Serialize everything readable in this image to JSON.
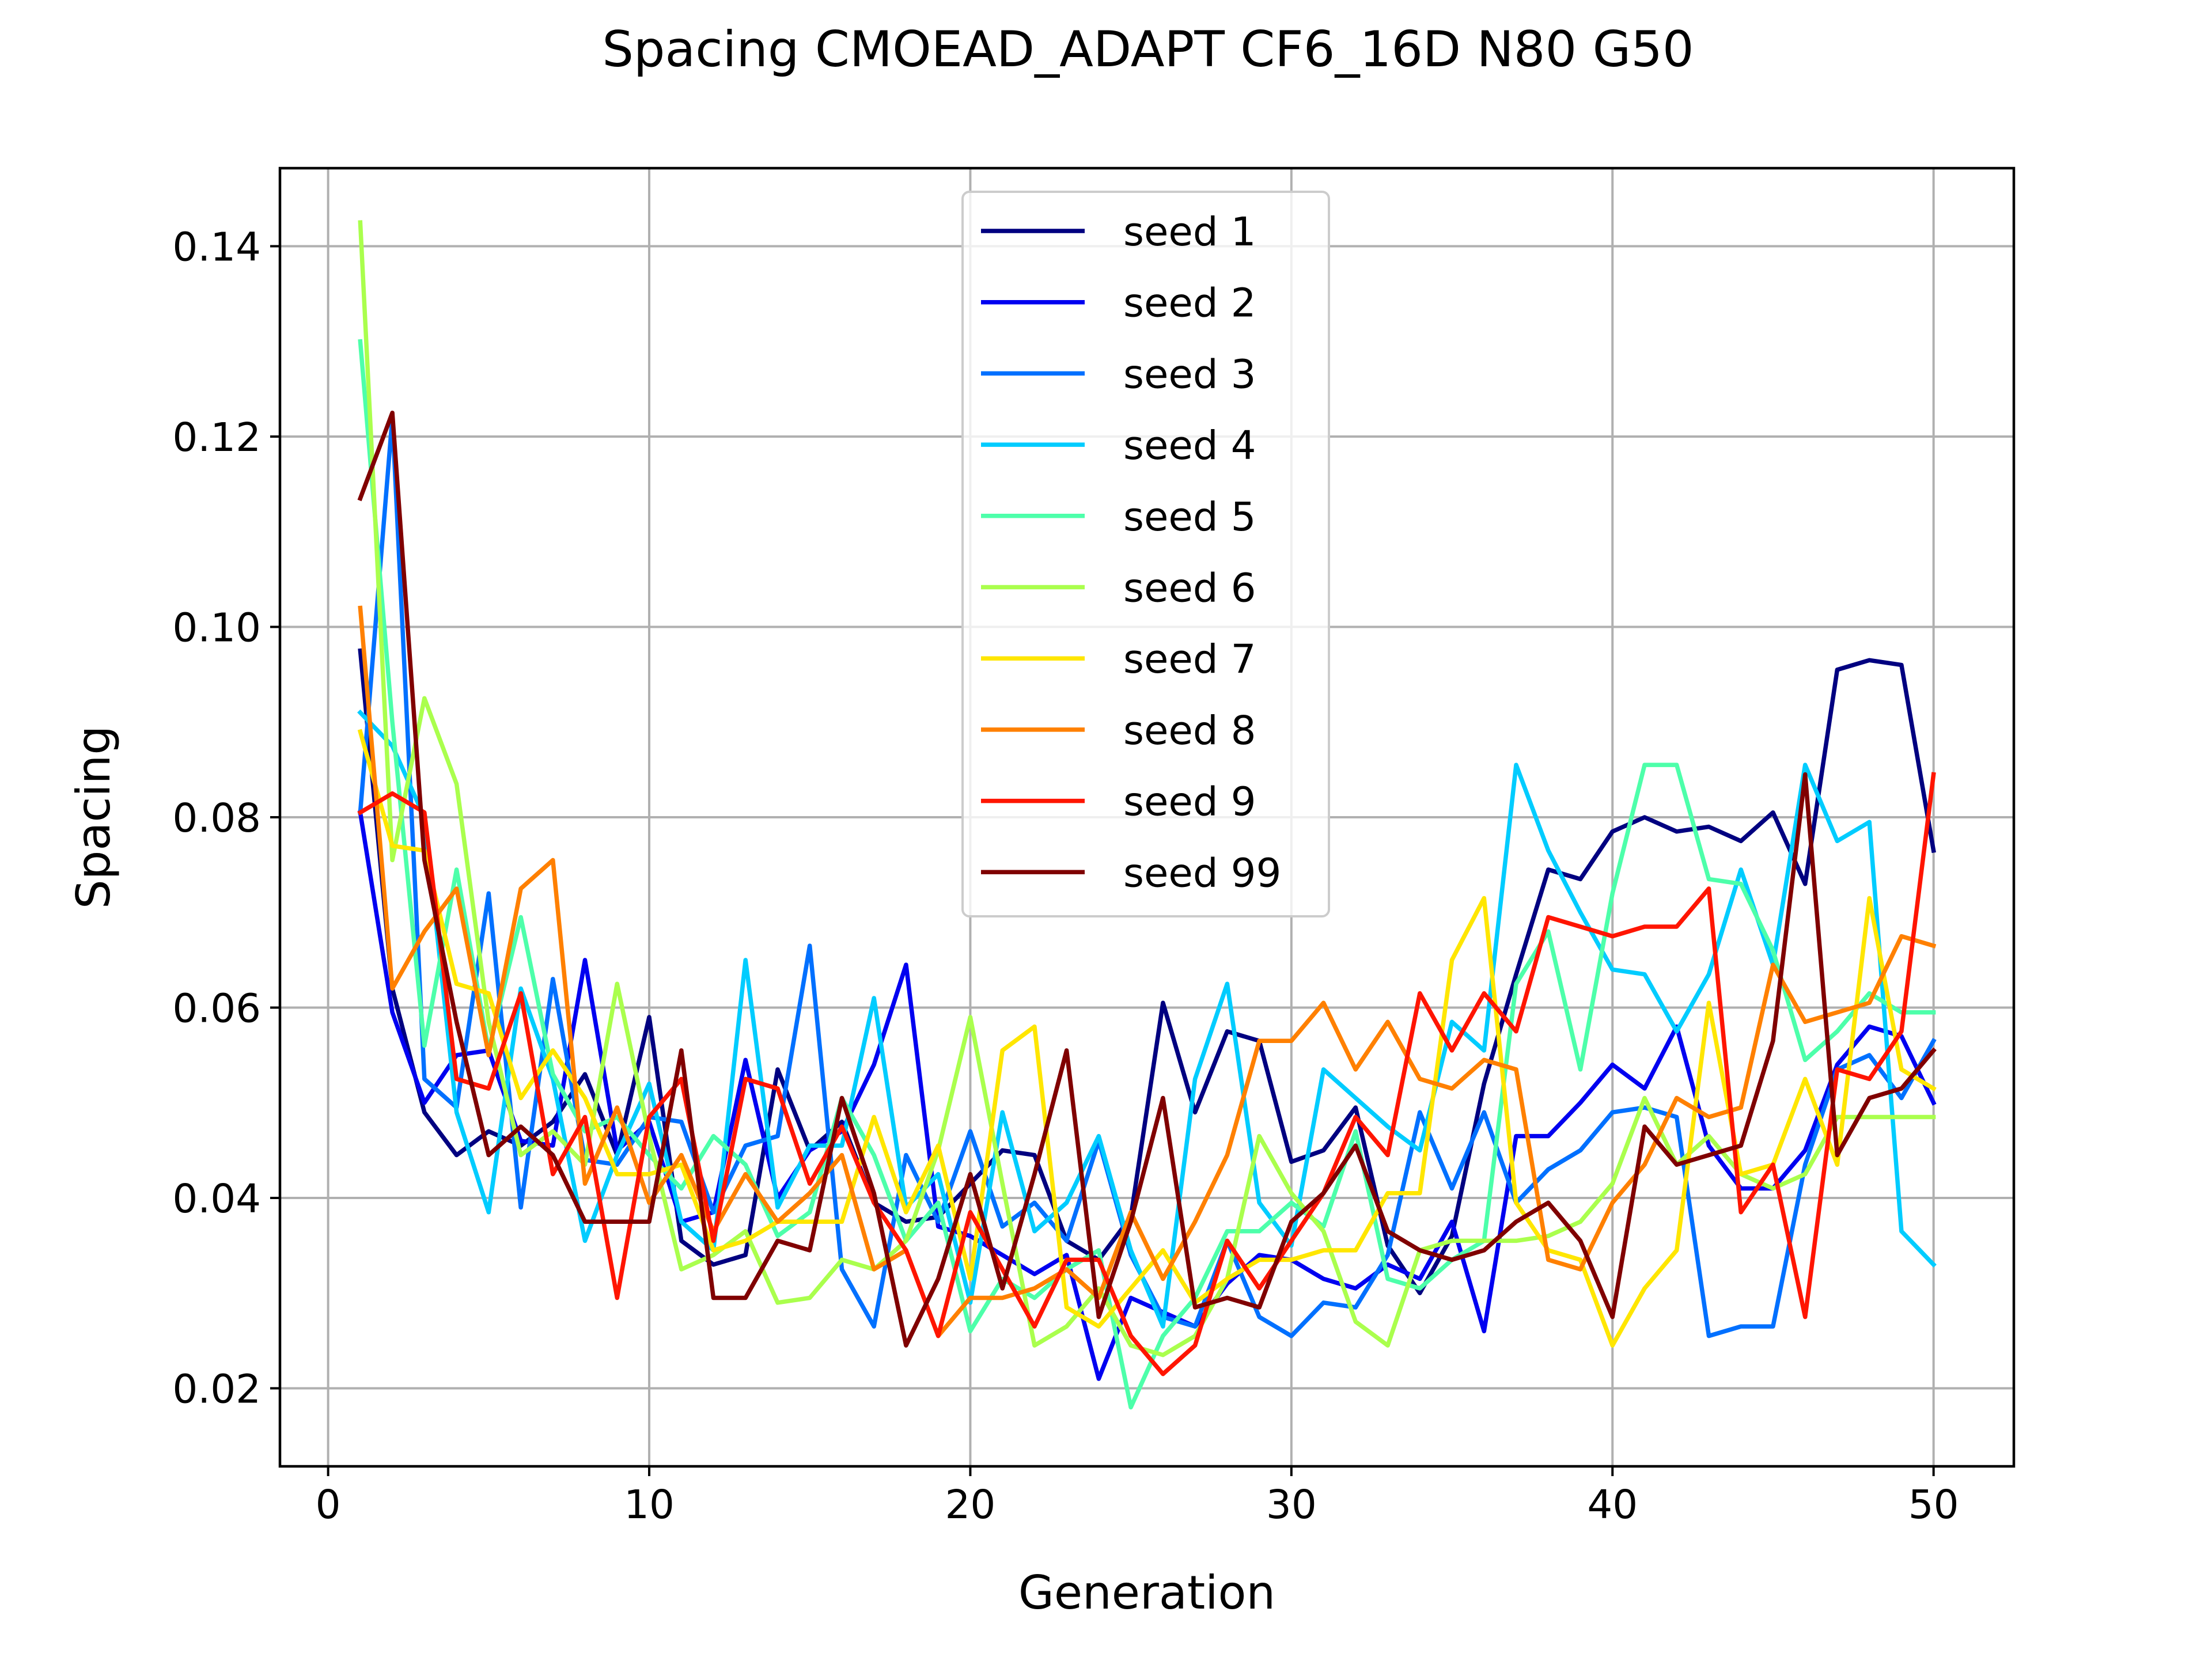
{
  "chart_data": {
    "type": "line",
    "title": "Spacing CMOEAD_ADAPT CF6_16D N80 G50",
    "xlabel": "Generation",
    "ylabel": "Spacing",
    "xlim": [
      -1.5,
      52.5
    ],
    "ylim": [
      0.0118,
      0.1482
    ],
    "xticks": [
      0,
      10,
      20,
      30,
      40,
      50
    ],
    "yticks": [
      0.02,
      0.04,
      0.06,
      0.08,
      0.1,
      0.12,
      0.14
    ],
    "xtick_labels": [
      "0",
      "10",
      "20",
      "30",
      "40",
      "50"
    ],
    "ytick_labels": [
      "0.02",
      "0.04",
      "0.06",
      "0.08",
      "0.10",
      "0.12",
      "0.14"
    ],
    "grid": true,
    "legend_position": "upper-center",
    "x": [
      1,
      2,
      3,
      4,
      5,
      6,
      7,
      8,
      9,
      10,
      11,
      12,
      13,
      14,
      15,
      16,
      17,
      18,
      19,
      20,
      21,
      22,
      23,
      24,
      25,
      26,
      27,
      28,
      29,
      30,
      31,
      32,
      33,
      34,
      35,
      36,
      37,
      38,
      39,
      40,
      41,
      42,
      43,
      44,
      45,
      46,
      47,
      48,
      49,
      50
    ],
    "series": [
      {
        "name": "seed 1",
        "color": "#000080",
        "values": [
          0.0975,
          0.062,
          0.049,
          0.0445,
          0.047,
          0.0455,
          0.048,
          0.053,
          0.0445,
          0.059,
          0.0355,
          0.033,
          0.034,
          0.0535,
          0.045,
          0.048,
          0.0395,
          0.0375,
          0.038,
          0.0415,
          0.045,
          0.0445,
          0.0355,
          0.0335,
          0.038,
          0.0605,
          0.049,
          0.0575,
          0.0565,
          0.0438,
          0.045,
          0.0495,
          0.035,
          0.03,
          0.036,
          0.052,
          0.0635,
          0.0745,
          0.0735,
          0.0785,
          0.08,
          0.0785,
          0.079,
          0.0775,
          0.0805,
          0.073,
          0.0955,
          0.0965,
          0.096,
          0.0765
        ]
      },
      {
        "name": "seed 2",
        "color": "#0000f0",
        "values": [
          0.0805,
          0.0595,
          0.05,
          0.055,
          0.0555,
          0.046,
          0.0455,
          0.065,
          0.045,
          0.048,
          0.0375,
          0.0385,
          0.0545,
          0.04,
          0.045,
          0.047,
          0.054,
          0.0645,
          0.037,
          0.036,
          0.034,
          0.032,
          0.034,
          0.021,
          0.0295,
          0.028,
          0.0265,
          0.031,
          0.034,
          0.0335,
          0.0315,
          0.0305,
          0.033,
          0.0315,
          0.0375,
          0.026,
          0.0465,
          0.0465,
          0.05,
          0.054,
          0.0515,
          0.058,
          0.0455,
          0.041,
          0.041,
          0.045,
          0.054,
          0.058,
          0.057,
          0.05
        ]
      },
      {
        "name": "seed 3",
        "color": "#0070ff",
        "values": [
          0.0805,
          0.122,
          0.0525,
          0.0495,
          0.072,
          0.039,
          0.063,
          0.044,
          0.0435,
          0.0485,
          0.048,
          0.0385,
          0.0455,
          0.0465,
          0.0665,
          0.0325,
          0.0265,
          0.0445,
          0.0375,
          0.047,
          0.037,
          0.0395,
          0.0355,
          0.046,
          0.034,
          0.0275,
          0.0265,
          0.0355,
          0.0275,
          0.0255,
          0.029,
          0.0285,
          0.034,
          0.049,
          0.041,
          0.049,
          0.0395,
          0.043,
          0.045,
          0.049,
          0.0495,
          0.0485,
          0.0255,
          0.0265,
          0.0265,
          0.0435,
          0.0535,
          0.055,
          0.0505,
          0.0565
        ]
      },
      {
        "name": "seed 4",
        "color": "#00ccff",
        "values": [
          0.091,
          0.0875,
          0.08,
          0.049,
          0.0385,
          0.062,
          0.0525,
          0.0355,
          0.0445,
          0.052,
          0.0375,
          0.0345,
          0.065,
          0.039,
          0.0455,
          0.0455,
          0.061,
          0.039,
          0.0425,
          0.029,
          0.049,
          0.0365,
          0.0395,
          0.0465,
          0.0345,
          0.0265,
          0.0525,
          0.0625,
          0.0395,
          0.035,
          0.0535,
          0.0505,
          0.0475,
          0.045,
          0.0585,
          0.0555,
          0.0855,
          0.0765,
          0.07,
          0.064,
          0.0635,
          0.0575,
          0.0635,
          0.0745,
          0.0645,
          0.0855,
          0.0775,
          0.0795,
          0.0365,
          0.033
        ]
      },
      {
        "name": "seed 5",
        "color": "#4dffaa",
        "values": [
          0.13,
          0.09,
          0.056,
          0.0745,
          0.0555,
          0.0695,
          0.053,
          0.047,
          0.0485,
          0.0445,
          0.041,
          0.0465,
          0.0435,
          0.036,
          0.0385,
          0.0505,
          0.0445,
          0.0355,
          0.0395,
          0.026,
          0.0315,
          0.0295,
          0.0325,
          0.0345,
          0.018,
          0.0255,
          0.0295,
          0.0365,
          0.0365,
          0.0395,
          0.037,
          0.047,
          0.0315,
          0.0305,
          0.0335,
          0.0355,
          0.0625,
          0.068,
          0.0535,
          0.072,
          0.0855,
          0.0855,
          0.0735,
          0.073,
          0.066,
          0.0545,
          0.0575,
          0.0615,
          0.0595,
          0.0595
        ]
      },
      {
        "name": "seed 6",
        "color": "#aaff4d",
        "values": [
          0.1425,
          0.0755,
          0.0925,
          0.0835,
          0.0585,
          0.0445,
          0.047,
          0.0435,
          0.0625,
          0.0465,
          0.0325,
          0.034,
          0.0365,
          0.029,
          0.0295,
          0.0335,
          0.0325,
          0.0355,
          0.045,
          0.059,
          0.0415,
          0.0245,
          0.0265,
          0.0305,
          0.0245,
          0.0235,
          0.0255,
          0.0315,
          0.0465,
          0.0405,
          0.0365,
          0.027,
          0.0245,
          0.0345,
          0.0355,
          0.0355,
          0.0355,
          0.036,
          0.0375,
          0.0415,
          0.0505,
          0.0435,
          0.0465,
          0.0425,
          0.041,
          0.0425,
          0.0485,
          0.0485,
          0.0485,
          0.0485
        ]
      },
      {
        "name": "seed 7",
        "color": "#ffe600",
        "values": [
          0.089,
          0.077,
          0.0765,
          0.0625,
          0.0615,
          0.0505,
          0.0555,
          0.0505,
          0.0425,
          0.0425,
          0.0435,
          0.0345,
          0.0355,
          0.0375,
          0.0375,
          0.0375,
          0.0485,
          0.0385,
          0.0455,
          0.0315,
          0.0555,
          0.058,
          0.0285,
          0.0265,
          0.0305,
          0.0345,
          0.029,
          0.0315,
          0.0335,
          0.0335,
          0.0345,
          0.0345,
          0.0405,
          0.0405,
          0.065,
          0.0715,
          0.0395,
          0.0345,
          0.0335,
          0.0245,
          0.0305,
          0.0345,
          0.0605,
          0.0425,
          0.0435,
          0.0525,
          0.0435,
          0.0715,
          0.0535,
          0.0515
        ]
      },
      {
        "name": "seed 8",
        "color": "#ff8000",
        "values": [
          0.102,
          0.062,
          0.068,
          0.0725,
          0.055,
          0.0725,
          0.0755,
          0.0415,
          0.0495,
          0.0395,
          0.0445,
          0.0365,
          0.0425,
          0.0375,
          0.0405,
          0.0445,
          0.0325,
          0.0345,
          0.0255,
          0.0295,
          0.0295,
          0.0305,
          0.0325,
          0.0295,
          0.0385,
          0.0315,
          0.0375,
          0.0445,
          0.0565,
          0.0565,
          0.0605,
          0.0535,
          0.0585,
          0.0525,
          0.0515,
          0.0545,
          0.0535,
          0.0335,
          0.0325,
          0.0395,
          0.0435,
          0.0505,
          0.0485,
          0.0495,
          0.0645,
          0.0585,
          0.0595,
          0.0605,
          0.0675,
          0.0665
        ]
      },
      {
        "name": "seed 9",
        "color": "#ff1500",
        "values": [
          0.0805,
          0.0825,
          0.0805,
          0.0525,
          0.0515,
          0.0615,
          0.0425,
          0.0485,
          0.0295,
          0.0485,
          0.0525,
          0.0355,
          0.0525,
          0.0515,
          0.0415,
          0.0475,
          0.0395,
          0.0345,
          0.0255,
          0.0385,
          0.0325,
          0.0265,
          0.0335,
          0.0335,
          0.0255,
          0.0215,
          0.0245,
          0.0355,
          0.0305,
          0.0355,
          0.0405,
          0.0485,
          0.0445,
          0.0615,
          0.0555,
          0.0615,
          0.0575,
          0.0695,
          0.0685,
          0.0675,
          0.0685,
          0.0685,
          0.0725,
          0.0385,
          0.0435,
          0.0275,
          0.0535,
          0.0525,
          0.0575,
          0.0845
        ]
      },
      {
        "name": "seed 99",
        "color": "#800000",
        "values": [
          0.1135,
          0.1225,
          0.0755,
          0.0585,
          0.0445,
          0.0475,
          0.0445,
          0.0375,
          0.0375,
          0.0375,
          0.0555,
          0.0295,
          0.0295,
          0.0355,
          0.0345,
          0.0505,
          0.0405,
          0.0245,
          0.0315,
          0.0425,
          0.0305,
          0.0425,
          0.0555,
          0.0275,
          0.0375,
          0.0505,
          0.0285,
          0.0295,
          0.0285,
          0.0375,
          0.0405,
          0.0455,
          0.0365,
          0.0345,
          0.0335,
          0.0345,
          0.0375,
          0.0395,
          0.0355,
          0.0275,
          0.0475,
          0.0435,
          0.0445,
          0.0455,
          0.0565,
          0.0845,
          0.0445,
          0.0505,
          0.0515,
          0.0555
        ]
      }
    ]
  }
}
